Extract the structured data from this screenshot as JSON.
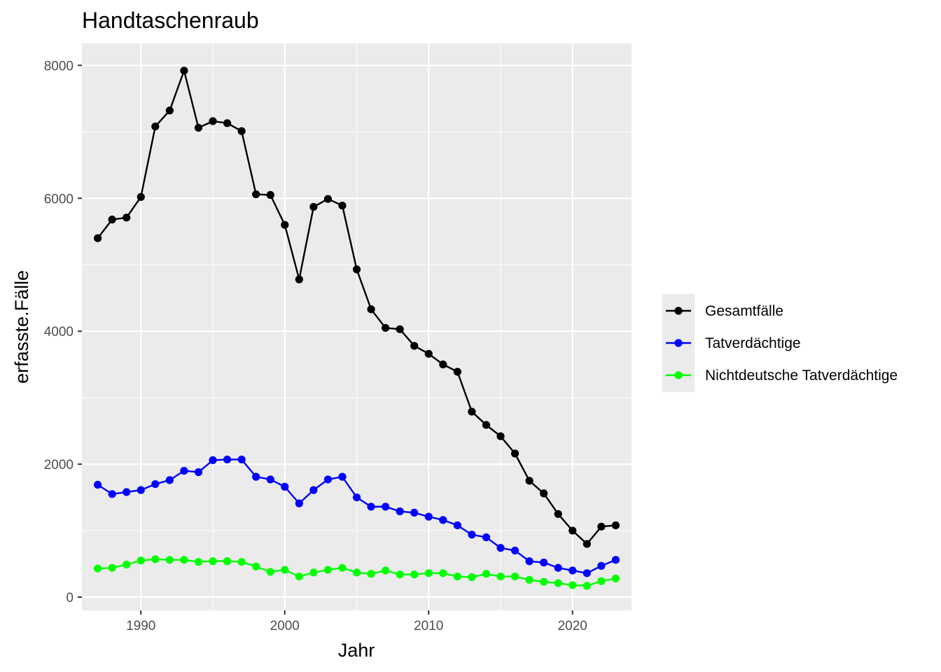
{
  "chart_data": {
    "type": "line",
    "title": "Handtaschenraub",
    "xlabel": "Jahr",
    "ylabel": "erfasste.Fälle",
    "xlim": [
      1985.9,
      2024.1
    ],
    "ylim": [
      -200,
      8330
    ],
    "x_ticks": [
      1990,
      2000,
      2010,
      2020
    ],
    "y_ticks": [
      0,
      2000,
      4000,
      6000,
      8000
    ],
    "grid": true,
    "legend_position": "right",
    "x": [
      1987,
      1988,
      1989,
      1990,
      1991,
      1992,
      1993,
      1994,
      1995,
      1996,
      1997,
      1998,
      1999,
      2000,
      2001,
      2002,
      2003,
      2004,
      2005,
      2006,
      2007,
      2008,
      2009,
      2010,
      2011,
      2012,
      2013,
      2014,
      2015,
      2016,
      2017,
      2018,
      2019,
      2020,
      2021,
      2022,
      2023
    ],
    "series": [
      {
        "name": "Gesamtfälle",
        "color": "#000000",
        "values": [
          5400,
          5680,
          5710,
          6020,
          7080,
          7320,
          7920,
          7060,
          7160,
          7130,
          7010,
          6060,
          6050,
          5600,
          4780,
          5870,
          5990,
          5890,
          4930,
          4330,
          4050,
          4030,
          3780,
          3660,
          3500,
          3390,
          2790,
          2590,
          2420,
          2160,
          1750,
          1560,
          1250,
          1000,
          800,
          1060,
          1080
        ]
      },
      {
        "name": "Tatverdächtige",
        "color": "#0000ff",
        "values": [
          1690,
          1550,
          1580,
          1610,
          1700,
          1760,
          1900,
          1880,
          2060,
          2070,
          2070,
          1810,
          1770,
          1660,
          1410,
          1610,
          1770,
          1810,
          1500,
          1360,
          1360,
          1290,
          1270,
          1210,
          1160,
          1080,
          940,
          900,
          740,
          700,
          540,
          520,
          440,
          400,
          360,
          470,
          560
        ]
      },
      {
        "name": "Nichtdeutsche Tatverdächtige",
        "color": "#00ff00",
        "values": [
          430,
          440,
          490,
          550,
          570,
          560,
          560,
          530,
          540,
          540,
          530,
          460,
          380,
          410,
          310,
          370,
          410,
          440,
          370,
          350,
          400,
          340,
          340,
          360,
          360,
          310,
          300,
          350,
          310,
          310,
          260,
          230,
          210,
          180,
          170,
          240,
          280
        ]
      }
    ]
  }
}
